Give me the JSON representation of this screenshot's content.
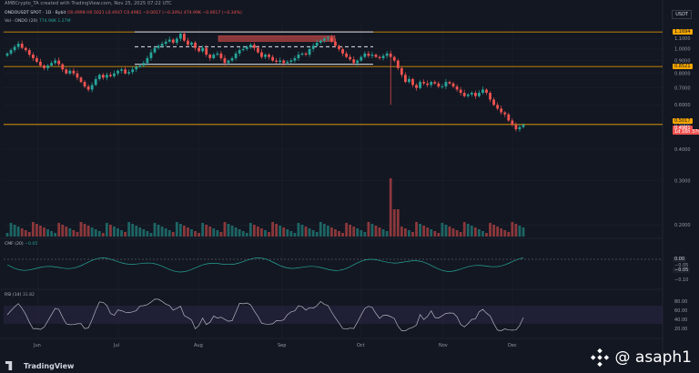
{
  "header": {
    "topline": "AMBCrypto_TA created with TradingView.com, Nov 25, 2025 07:22 UTC",
    "symbol": "ONDOUSDT SPOT · 1D · Bybit",
    "ohlc": "O0.4998 H0.5021 L0.4937 C0.4981 −0.0017 (−0.34%)",
    "ohlc_extra": "474.99K −0.0017 (−0.34%)",
    "volume_label": "Vol · ONDO (20)",
    "volume_values": "774.98K  1.27M",
    "currency": "USDT"
  },
  "indicators": {
    "cmf_label": "CMF (20)",
    "cmf_value": "−0.05",
    "rsi_label": "RSI (14)",
    "rsi_value": "31.82"
  },
  "price_badges": [
    {
      "text": "1.1694",
      "bg": "#f7a600",
      "fg": "#131722"
    },
    {
      "text": "0.8521",
      "bg": "#f7a600",
      "fg": "#131722"
    },
    {
      "text": "0.5017",
      "bg": "#f7a600",
      "fg": "#131722"
    },
    {
      "text": "0.4981",
      "bg": "#ef5350",
      "fg": "#ffffff"
    },
    {
      "text": "1d 16h 37m 58s",
      "bg": "#ef5350",
      "fg": "#ffffff"
    }
  ],
  "indicator_badges": [
    {
      "text": "0.00",
      "bg": "#1e222d",
      "fg": "#d1d4dc"
    },
    {
      "text": "−0.05",
      "bg": "#1e222d",
      "fg": "#d1d4dc"
    }
  ],
  "footer": {
    "brand": "TradingView",
    "watermark": "@ asaph1"
  },
  "colors": {
    "up": "#26a69a",
    "down": "#ef5350",
    "level": "#f7a600",
    "background": "#131722",
    "grid": "#1e222d"
  },
  "chart_data": {
    "type": "candlestick",
    "y_scale": "log",
    "price_ticks": [
      "1.1000",
      "1.0000",
      "0.9000",
      "0.8000",
      "0.7000",
      "0.6000",
      "0.5000",
      "0.4000",
      "0.3000",
      "0.2000"
    ],
    "x_ticks": [
      "Jun",
      "Jul",
      "Aug",
      "Sep",
      "Oct",
      "Nov",
      "Dec"
    ],
    "levels": [
      1.1694,
      0.8521,
      0.5017
    ],
    "range_lines": {
      "top": 1.1694,
      "mid": 1.0212,
      "bottom": 0.8704
    },
    "last_price": 0.4981,
    "cmf_ticks": [
      "0.00",
      "−0.05",
      "−0.10"
    ],
    "rsi_ticks": [
      "80.00",
      "60.00",
      "40.00",
      "20.00"
    ],
    "rsi_band": [
      30,
      70
    ],
    "closes": [
      0.96,
      0.99,
      1.02,
      1.05,
      1.01,
      0.99,
      0.95,
      0.92,
      0.89,
      0.86,
      0.84,
      0.86,
      0.88,
      0.9,
      0.87,
      0.83,
      0.8,
      0.82,
      0.8,
      0.77,
      0.74,
      0.71,
      0.69,
      0.72,
      0.76,
      0.79,
      0.77,
      0.79,
      0.78,
      0.8,
      0.82,
      0.83,
      0.8,
      0.81,
      0.83,
      0.85,
      0.86,
      0.88,
      0.92,
      0.97,
      1.01,
      1.03,
      1.05,
      1.07,
      1.09,
      1.06,
      1.1,
      1.15,
      1.08,
      1.04,
      1.06,
      1.01,
      0.98,
      1.01,
      0.95,
      0.92,
      0.95,
      0.96,
      0.92,
      0.88,
      0.9,
      0.92,
      0.96,
      0.99,
      1.0,
      1.02,
      1.04,
      1.01,
      0.97,
      0.93,
      0.95,
      0.93,
      0.9,
      0.89,
      0.9,
      0.88,
      0.89,
      0.9,
      0.92,
      0.95,
      0.96,
      0.95,
      1.0,
      1.03,
      1.06,
      1.08,
      1.1,
      1.11,
      1.07,
      1.03,
      1.0,
      0.96,
      0.93,
      0.91,
      0.88,
      0.9,
      0.93,
      0.96,
      0.94,
      0.95,
      0.93,
      0.92,
      0.94,
      0.96,
      0.93,
      0.9,
      0.84,
      0.79,
      0.74,
      0.76,
      0.72,
      0.7,
      0.74,
      0.73,
      0.72,
      0.74,
      0.73,
      0.71,
      0.71,
      0.74,
      0.73,
      0.71,
      0.69,
      0.67,
      0.65,
      0.66,
      0.67,
      0.65,
      0.67,
      0.69,
      0.67,
      0.63,
      0.6,
      0.58,
      0.56,
      0.55,
      0.52,
      0.5,
      0.48,
      0.49,
      0.5
    ]
  }
}
